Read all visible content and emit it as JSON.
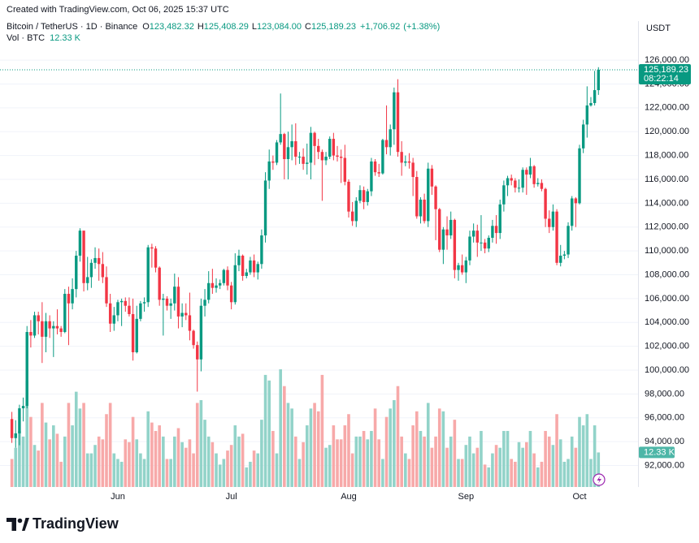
{
  "header": "Created with TradingView.com, Oct 06, 2025 15:37 UTC",
  "chart_data": {
    "type": "candlestick",
    "symbol": "Bitcoin / TetherUS · 1D · Binance",
    "ohlc_prefixes": [
      "O",
      "H",
      "L",
      "C"
    ],
    "legend_values": [
      {
        "value": 123482.32,
        "label": "123,482.32"
      },
      {
        "value": 125408.29,
        "label": "125,408.29"
      },
      {
        "value": 123084,
        "label": "123,084.00"
      },
      {
        "value": 125189.23,
        "label": "125,189.23"
      }
    ],
    "change": {
      "value": 1706.92,
      "label": "+1,706.92"
    },
    "change_percent": {
      "value": 1.38,
      "label": "(+1.38%)"
    },
    "volume_title": "Vol · BTC",
    "volume_label": {
      "value": 12330,
      "label": "12.33 K"
    },
    "currency": "USDT",
    "last_price": {
      "value": 125189.23,
      "label": "125,189.23"
    },
    "countdown": "08:22:14",
    "categories": [
      null,
      null,
      null,
      null,
      null,
      null,
      null,
      null,
      null,
      null,
      null,
      null,
      null,
      null,
      null,
      null,
      null,
      null,
      null,
      null,
      null,
      null,
      null,
      null,
      null,
      null,
      null,
      null,
      "Jun",
      null,
      null,
      null,
      null,
      null,
      null,
      null,
      null,
      null,
      null,
      null,
      null,
      null,
      null,
      null,
      null,
      null,
      null,
      null,
      null,
      null,
      null,
      null,
      null,
      null,
      null,
      null,
      null,
      null,
      "Jul",
      null,
      null,
      null,
      null,
      null,
      null,
      null,
      null,
      null,
      null,
      null,
      null,
      null,
      null,
      null,
      null,
      null,
      null,
      null,
      null,
      null,
      null,
      null,
      null,
      null,
      null,
      null,
      null,
      null,
      null,
      "Aug",
      null,
      null,
      null,
      null,
      null,
      null,
      null,
      null,
      null,
      null,
      null,
      null,
      null,
      null,
      null,
      null,
      null,
      null,
      null,
      null,
      null,
      null,
      null,
      null,
      null,
      null,
      null,
      null,
      null,
      null,
      "Sep",
      null,
      null,
      null,
      null,
      null,
      null,
      null,
      null,
      null,
      null,
      null,
      null,
      null,
      null,
      null,
      null,
      null,
      null,
      null,
      null,
      null,
      null,
      null,
      null,
      null,
      null,
      null,
      null,
      null,
      "Oct",
      null,
      null,
      null,
      null,
      null
    ],
    "open": [
      95900,
      94300,
      94700,
      96800,
      97000,
      103200,
      102900,
      104600,
      104100,
      102800,
      104100,
      103500,
      103700,
      103500,
      103200,
      106400,
      105600,
      106800,
      109600,
      111700,
      107300,
      107800,
      109000,
      109400,
      108900,
      107800,
      105600,
      103900,
      104600,
      105700,
      105800,
      105400,
      104700,
      101500,
      104300,
      105600,
      105700,
      110300,
      110200,
      108600,
      105900,
      106000,
      105400,
      105600,
      107000,
      104500,
      104800,
      104600,
      103300,
      102100,
      100900,
      105400,
      105900,
      107300,
      106900,
      107100,
      107300,
      108400,
      107100,
      105700,
      108800,
      109600,
      107900,
      108200,
      109200,
      108200,
      108900,
      111300,
      115900,
      117500,
      117400,
      119100,
      119800,
      117700,
      118700,
      119200,
      117900,
      117900,
      117300,
      117400,
      119900,
      118800,
      118300,
      117600,
      117900,
      119400,
      118000,
      117900,
      117800,
      115800,
      113300,
      112500,
      114200,
      115100,
      114100,
      115000,
      117500,
      116600,
      116500,
      119300,
      118700,
      120200,
      123300,
      118300,
      117400,
      117500,
      117400,
      116200,
      112900,
      114300,
      112500,
      116900,
      115400,
      113500,
      110100,
      111800,
      111300,
      112600,
      108400,
      108800,
      108200,
      109200,
      111200,
      111700,
      110700,
      110700,
      110200,
      111100,
      112100,
      111500,
      113900,
      115500,
      116100,
      115900,
      115300,
      115300,
      116800,
      116400,
      117100,
      115600,
      115700,
      115200,
      112700,
      112000,
      113300,
      109000,
      109600,
      109700,
      112100,
      114400,
      114000,
      118600,
      120600,
      122200,
      122400,
      123482.32
    ],
    "high": [
      96500,
      95800,
      97100,
      97700,
      103700,
      104200,
      104900,
      104900,
      105700,
      104800,
      104600,
      104100,
      105100,
      103700,
      106800,
      107000,
      107700,
      110000,
      111900,
      111700,
      109500,
      109300,
      110300,
      110200,
      109900,
      108700,
      106400,
      105300,
      105900,
      106000,
      106100,
      106100,
      106000,
      105400,
      105800,
      106100,
      110500,
      110600,
      110400,
      108700,
      106400,
      106200,
      106000,
      108100,
      107800,
      105600,
      105600,
      106500,
      103400,
      102400,
      106000,
      106800,
      108300,
      108500,
      107700,
      107600,
      108500,
      108700,
      107400,
      109800,
      110100,
      109700,
      108500,
      109500,
      109700,
      109100,
      111800,
      116600,
      118500,
      118000,
      119300,
      123200,
      119900,
      120000,
      120600,
      120700,
      118300,
      118600,
      119000,
      120400,
      120000,
      119400,
      118500,
      118300,
      119600,
      119900,
      118800,
      118500,
      118900,
      116000,
      114100,
      114500,
      115500,
      115400,
      115200,
      117800,
      117700,
      117300,
      119400,
      122200,
      120600,
      123700,
      124400,
      119200,
      118000,
      118200,
      117800,
      116700,
      114500,
      114800,
      117400,
      117200,
      115500,
      113600,
      112000,
      112900,
      113300,
      112700,
      109000,
      109700,
      109500,
      111700,
      112300,
      112200,
      113000,
      111000,
      111300,
      112600,
      113000,
      114300,
      115900,
      116300,
      116400,
      116100,
      116000,
      117000,
      117000,
      117800,
      117200,
      116100,
      116000,
      115300,
      113400,
      113900,
      113500,
      110500,
      110000,
      112400,
      114600,
      114500,
      118900,
      121000,
      123800,
      122900,
      125100,
      125408.29
    ],
    "low": [
      93900,
      93500,
      93700,
      95700,
      96800,
      101900,
      102700,
      103000,
      100600,
      101500,
      102700,
      101100,
      103000,
      102800,
      103100,
      102100,
      105100,
      106100,
      109100,
      106600,
      106700,
      106900,
      108500,
      107500,
      107300,
      105300,
      103200,
      103300,
      104100,
      103700,
      104900,
      104500,
      100800,
      101400,
      104100,
      104900,
      105300,
      108600,
      108200,
      105400,
      102900,
      105000,
      104300,
      105000,
      103500,
      103600,
      104200,
      102500,
      101800,
      98200,
      99900,
      104500,
      105600,
      106400,
      106500,
      106800,
      107100,
      106700,
      105100,
      105500,
      108300,
      107500,
      107700,
      108000,
      107800,
      107600,
      108500,
      110700,
      115200,
      116800,
      117200,
      118900,
      116000,
      116000,
      117600,
      117200,
      117300,
      116800,
      116400,
      116000,
      117200,
      117700,
      114200,
      117200,
      117700,
      117600,
      117500,
      115700,
      115500,
      112800,
      112100,
      112000,
      114000,
      113500,
      113800,
      114600,
      116300,
      116200,
      116400,
      118100,
      118000,
      118900,
      117900,
      116300,
      117100,
      116900,
      114600,
      112700,
      112300,
      112300,
      112000,
      114700,
      110900,
      109900,
      108900,
      110100,
      111000,
      107700,
      107500,
      108000,
      107300,
      108800,
      110700,
      109500,
      110000,
      109800,
      109900,
      110700,
      110600,
      111000,
      113300,
      114600,
      115500,
      114900,
      114900,
      114900,
      114700,
      116100,
      115300,
      115400,
      115000,
      112000,
      111500,
      111700,
      108800,
      108700,
      109300,
      109400,
      111700,
      112000,
      113900,
      118200,
      119500,
      122100,
      122200,
      123084
    ],
    "close": [
      94300,
      94700,
      96800,
      97000,
      103200,
      102900,
      104600,
      104100,
      102800,
      104100,
      103500,
      103700,
      103500,
      103200,
      106400,
      105600,
      106800,
      109600,
      111700,
      107300,
      107800,
      109000,
      109400,
      108900,
      107800,
      105600,
      103900,
      104600,
      105700,
      105800,
      105400,
      104700,
      101500,
      104300,
      105600,
      105700,
      110300,
      110200,
      108600,
      105900,
      106000,
      105400,
      105600,
      107000,
      104500,
      104800,
      104600,
      103300,
      102100,
      100900,
      105400,
      105900,
      107300,
      106900,
      107100,
      107300,
      108400,
      107100,
      105700,
      108800,
      109600,
      107900,
      108200,
      109200,
      108200,
      108900,
      111300,
      115900,
      117500,
      117400,
      119100,
      119800,
      117700,
      118700,
      119200,
      117900,
      117900,
      117300,
      117400,
      119900,
      118800,
      118300,
      117600,
      117900,
      119400,
      118000,
      117900,
      117800,
      115800,
      113300,
      112500,
      114200,
      115100,
      114100,
      115000,
      117500,
      116600,
      116500,
      119300,
      118700,
      120200,
      123300,
      118300,
      117400,
      117500,
      117400,
      116200,
      112900,
      114300,
      112500,
      116900,
      115400,
      113500,
      110100,
      111800,
      111300,
      112600,
      108400,
      108800,
      108200,
      109200,
      111200,
      111700,
      110700,
      110700,
      110200,
      111100,
      112100,
      111500,
      113900,
      115500,
      116100,
      115900,
      115300,
      115300,
      116800,
      116400,
      117100,
      115600,
      115700,
      115200,
      112700,
      112000,
      113300,
      109000,
      109600,
      109700,
      112100,
      114400,
      114000,
      118600,
      120600,
      122200,
      122400,
      123482.32,
      125189.23
    ],
    "volume": [
      10000,
      14000,
      20000,
      18000,
      38000,
      25000,
      15000,
      13000,
      30000,
      23000,
      17000,
      22000,
      19000,
      9000,
      18000,
      30000,
      22000,
      34000,
      28000,
      30000,
      12000,
      12000,
      15000,
      18000,
      17000,
      26000,
      30000,
      12000,
      10000,
      9000,
      17000,
      16000,
      25000,
      17000,
      12000,
      10000,
      27000,
      23000,
      20000,
      22000,
      18000,
      10000,
      10000,
      18000,
      21000,
      16000,
      14000,
      17000,
      12000,
      30000,
      31000,
      24000,
      18000,
      16000,
      12000,
      8000,
      10000,
      13000,
      15000,
      22000,
      18000,
      19000,
      7000,
      9000,
      13000,
      12000,
      24000,
      40000,
      38000,
      20000,
      12000,
      42000,
      36000,
      30000,
      28000,
      18000,
      10000,
      16000,
      22000,
      28000,
      30000,
      27000,
      40000,
      14000,
      15000,
      22000,
      17000,
      17000,
      22000,
      26000,
      12000,
      18000,
      18000,
      20000,
      17000,
      20000,
      28000,
      17000,
      10000,
      25000,
      28000,
      31000,
      36000,
      18000,
      12000,
      10000,
      22000,
      27000,
      20000,
      18000,
      30000,
      14000,
      18000,
      28000,
      27000,
      14000,
      18000,
      24000,
      10000,
      10000,
      15000,
      18000,
      12000,
      14000,
      20000,
      8000,
      7000,
      12000,
      15000,
      14000,
      20000,
      20000,
      10000,
      9000,
      16000,
      14000,
      16000,
      20000,
      12000,
      7000,
      9000,
      20000,
      18000,
      15000,
      26000,
      17000,
      9000,
      10000,
      18000,
      14000,
      25000,
      22000,
      26000,
      10000,
      22000,
      12330
    ],
    "up_color": "#089981",
    "down_color": "#f23645",
    "up_volume_color": "#92d3c9",
    "down_volume_color": "#f7a9a9",
    "volume_badge_color": "#4db6a7",
    "ylim": [
      90200,
      129000
    ],
    "yticks": [
      {
        "value": 92000,
        "label": "92,000.00"
      },
      {
        "value": 94000,
        "label": "94,000.00"
      },
      {
        "value": 96000,
        "label": "96,000.00"
      },
      {
        "value": 98000,
        "label": "98,000.00"
      },
      {
        "value": 100000,
        "label": "100,000.00"
      },
      {
        "value": 102000,
        "label": "102,000.00"
      },
      {
        "value": 104000,
        "label": "104,000.00"
      },
      {
        "value": 106000,
        "label": "106,000.00"
      },
      {
        "value": 108000,
        "label": "108,000.00"
      },
      {
        "value": 110000,
        "label": "110,000.00"
      },
      {
        "value": 112000,
        "label": "112,000.00"
      },
      {
        "value": 114000,
        "label": "114,000.00"
      },
      {
        "value": 116000,
        "label": "116,000.00"
      },
      {
        "value": 118000,
        "label": "118,000.00"
      },
      {
        "value": 120000,
        "label": "120,000.00"
      },
      {
        "value": 122000,
        "label": "122,000.00"
      },
      {
        "value": 124000,
        "label": "124,000.00"
      },
      {
        "value": 126000,
        "label": "126,000.00"
      }
    ],
    "grid": true
  },
  "footer": {
    "logo": "TradingView"
  }
}
